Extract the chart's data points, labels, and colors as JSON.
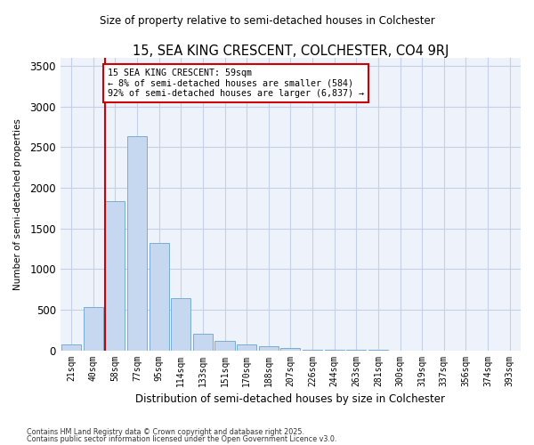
{
  "title": "15, SEA KING CRESCENT, COLCHESTER, CO4 9RJ",
  "subtitle": "Size of property relative to semi-detached houses in Colchester",
  "xlabel": "Distribution of semi-detached houses by size in Colchester",
  "ylabel": "Number of semi-detached properties",
  "footnote1": "Contains HM Land Registry data © Crown copyright and database right 2025.",
  "footnote2": "Contains public sector information licensed under the Open Government Licence v3.0.",
  "categories": [
    "21sqm",
    "40sqm",
    "58sqm",
    "77sqm",
    "95sqm",
    "114sqm",
    "133sqm",
    "151sqm",
    "170sqm",
    "188sqm",
    "207sqm",
    "226sqm",
    "244sqm",
    "263sqm",
    "281sqm",
    "300sqm",
    "319sqm",
    "337sqm",
    "356sqm",
    "374sqm",
    "393sqm"
  ],
  "values": [
    70,
    530,
    1840,
    2640,
    1320,
    640,
    200,
    115,
    70,
    50,
    30,
    10,
    5,
    2,
    1,
    0,
    0,
    0,
    0,
    0,
    0
  ],
  "bar_color": "#c5d8f0",
  "bar_edge_color": "#7aadd4",
  "pct_smaller": 8,
  "count_smaller": 584,
  "pct_larger": 92,
  "count_larger": 6837,
  "vline_color": "#cc0000",
  "annotation_box_color": "#cc0000",
  "ylim": [
    0,
    3600
  ],
  "yticks": [
    0,
    500,
    1000,
    1500,
    2000,
    2500,
    3000,
    3500
  ],
  "bg_color": "#ffffff",
  "plot_bg_color": "#eef2fb",
  "grid_color": "#c5cfe8"
}
